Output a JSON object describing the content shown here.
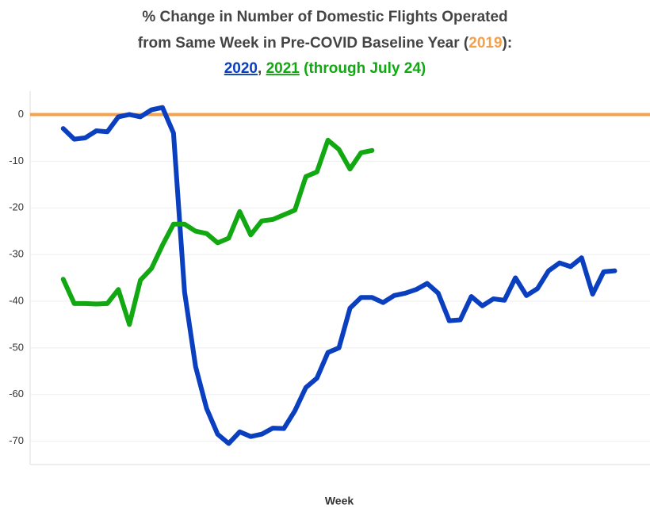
{
  "chart_data": {
    "type": "line",
    "title_parts": [
      "% Change in Number of Domestic Flights Operated",
      "from Same Week in Pre-COVID Baseline Year (",
      "):",
      ", ",
      " (through July 24)"
    ],
    "xlabel": "Week",
    "reference_line": {
      "name": "2019",
      "value": 0,
      "color": "#f5a04a"
    },
    "series": [
      {
        "name": "2020",
        "color": "#0a3fbf",
        "x": [
          1,
          2,
          3,
          4,
          5,
          6,
          7,
          8,
          9,
          10,
          11,
          12,
          13,
          14,
          15,
          16,
          17,
          18,
          19,
          20,
          21,
          22,
          23,
          24,
          25,
          26,
          27,
          28,
          29,
          30,
          31,
          32,
          33,
          34,
          35,
          36,
          37,
          38,
          39,
          40,
          41,
          42,
          43,
          44,
          45,
          46,
          47,
          48,
          49,
          50,
          51
        ],
        "values": [
          -3,
          -5.3,
          -5,
          -3.5,
          -3.7,
          -0.5,
          0,
          -0.5,
          1,
          1.5,
          -4,
          -38,
          -54,
          -63,
          -68.5,
          -70.5,
          -68,
          -69,
          -68.5,
          -67.2,
          -67.3,
          -63.5,
          -58.5,
          -56.5,
          -51,
          -50,
          -41.5,
          -39.2,
          -39.2,
          -40.3,
          -38.8,
          -38.3,
          -37.5,
          -36.2,
          -38.3,
          -44.2,
          -44,
          -39,
          -41,
          -39.5,
          -39.8,
          -35,
          -38.8,
          -37.3,
          -33.5,
          -31.8,
          -32.6,
          -30.7,
          -38.5,
          -33.7,
          -33.5
        ]
      },
      {
        "name": "2021",
        "color": "#12a812",
        "x": [
          1,
          2,
          3,
          4,
          5,
          6,
          7,
          8,
          9,
          10,
          11,
          12,
          13,
          14,
          15,
          16,
          17,
          18,
          19,
          20,
          21,
          22,
          23,
          24,
          25,
          26,
          27,
          28,
          29
        ],
        "values": [
          -35.3,
          -40.5,
          -40.5,
          -40.6,
          -40.5,
          -37.5,
          -45,
          -35.5,
          -33,
          -28,
          -23.5,
          -23.5,
          -25,
          -25.5,
          -27.5,
          -26.5,
          -20.8,
          -25.8,
          -22.8,
          -22.5,
          -21.5,
          -20.5,
          -13.3,
          -12.3,
          -5.5,
          -7.5,
          -11.7,
          -8.2,
          -7.7
        ]
      }
    ],
    "xlim": [
      -2,
      54.2
    ],
    "ylim": [
      -75,
      5
    ],
    "yticks": [
      0,
      -10,
      -20,
      -30,
      -40,
      -50,
      -60,
      -70
    ],
    "grid": true
  }
}
